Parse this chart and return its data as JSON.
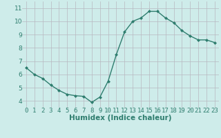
{
  "x": [
    0,
    1,
    2,
    3,
    4,
    5,
    6,
    7,
    8,
    9,
    10,
    11,
    12,
    13,
    14,
    15,
    16,
    17,
    18,
    19,
    20,
    21,
    22,
    23
  ],
  "y": [
    6.5,
    6.0,
    5.7,
    5.2,
    4.8,
    4.5,
    4.4,
    4.35,
    3.9,
    4.3,
    5.5,
    7.5,
    9.2,
    10.0,
    10.25,
    10.75,
    10.75,
    10.25,
    9.9,
    9.3,
    8.9,
    8.6,
    8.6,
    8.4
  ],
  "line_color": "#2e7d6e",
  "marker": "D",
  "marker_size": 2.0,
  "bg_color": "#ceecea",
  "grid_color": "#b8b8c0",
  "xlabel": "Humidex (Indice chaleur)",
  "xlabel_fontsize": 7.5,
  "xlabel_color": "#2e7d6e",
  "xtick_labels": [
    "0",
    "1",
    "2",
    "3",
    "4",
    "5",
    "6",
    "7",
    "8",
    "9",
    "10",
    "11",
    "12",
    "13",
    "14",
    "15",
    "16",
    "17",
    "18",
    "19",
    "20",
    "21",
    "22",
    "23"
  ],
  "ytick_labels": [
    "4",
    "5",
    "6",
    "7",
    "8",
    "9",
    "10",
    "11"
  ],
  "ytick_values": [
    4,
    5,
    6,
    7,
    8,
    9,
    10,
    11
  ],
  "ylim": [
    3.5,
    11.5
  ],
  "xlim": [
    -0.5,
    23.5
  ],
  "tick_color": "#2e7d6e",
  "tick_fontsize": 6.5,
  "linewidth": 1.0
}
